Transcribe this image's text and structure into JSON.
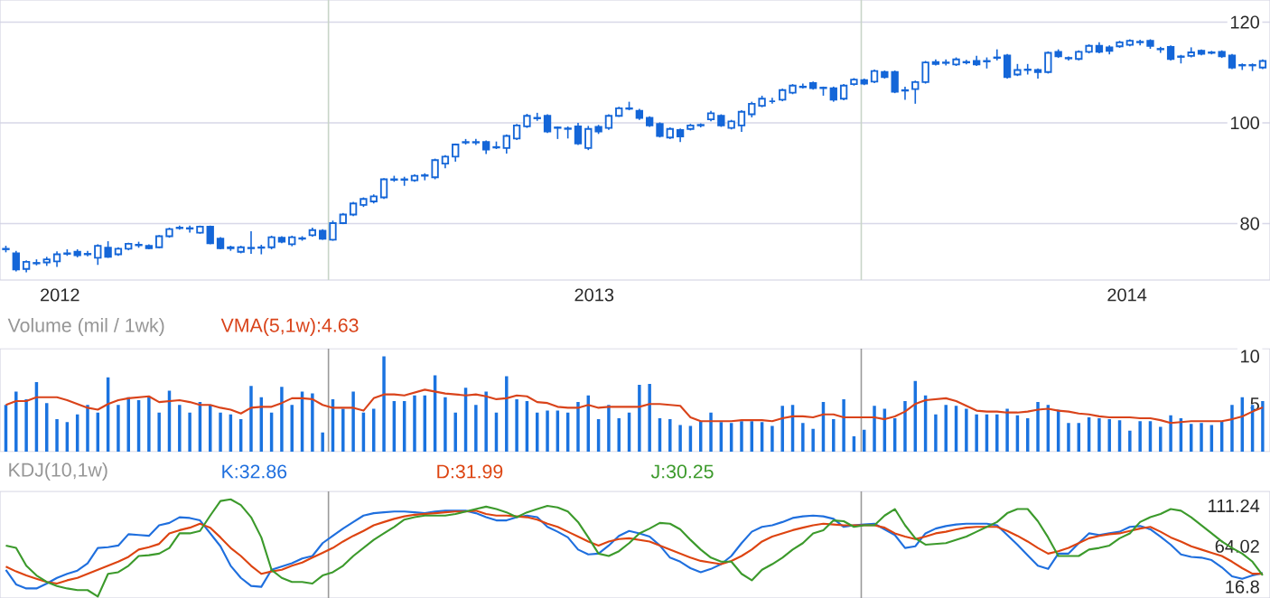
{
  "chart_data": [
    {
      "type": "candlestick",
      "color": "#1466d8",
      "x": [
        "2012-05-25",
        "2012-06-01",
        "2012-06-08",
        "2012-06-15",
        "2012-06-22",
        "2012-06-29",
        "2012-07-06",
        "2012-07-13",
        "2012-07-20",
        "2012-07-27",
        "2012-08-03",
        "2012-08-10",
        "2012-08-17",
        "2012-08-24",
        "2012-08-31",
        "2012-09-07",
        "2012-09-14",
        "2012-09-21",
        "2012-09-28",
        "2012-10-05",
        "2012-10-12",
        "2012-10-19",
        "2012-10-26",
        "2012-11-02",
        "2012-11-09",
        "2012-11-16",
        "2012-11-23",
        "2012-11-30",
        "2012-12-07",
        "2012-12-14",
        "2012-12-21",
        "2012-12-28",
        "2013-01-04",
        "2013-01-11",
        "2013-01-18",
        "2013-01-25",
        "2013-02-01",
        "2013-02-08",
        "2013-02-15",
        "2013-02-22",
        "2013-03-01",
        "2013-03-08",
        "2013-03-15",
        "2013-03-22",
        "2013-03-29",
        "2013-04-05",
        "2013-04-12",
        "2013-04-19",
        "2013-04-26",
        "2013-05-03",
        "2013-05-10",
        "2013-05-17",
        "2013-05-24",
        "2013-05-31",
        "2013-06-07",
        "2013-06-14",
        "2013-06-21",
        "2013-06-28",
        "2013-07-05",
        "2013-07-12",
        "2013-07-19",
        "2013-07-26",
        "2013-08-02",
        "2013-08-09",
        "2013-08-16",
        "2013-08-23",
        "2013-08-30",
        "2013-09-06",
        "2013-09-13",
        "2013-09-20",
        "2013-09-27",
        "2013-10-04",
        "2013-10-11",
        "2013-10-18",
        "2013-10-25",
        "2013-11-01",
        "2013-11-08",
        "2013-11-15",
        "2013-11-22",
        "2013-11-29",
        "2013-12-06",
        "2013-12-13",
        "2013-12-20",
        "2013-12-27",
        "2014-01-03",
        "2014-01-10",
        "2014-01-17",
        "2014-01-24",
        "2014-01-31",
        "2014-02-07",
        "2014-02-14",
        "2014-02-21",
        "2014-02-28",
        "2014-03-07",
        "2014-03-14",
        "2014-03-21",
        "2014-03-28",
        "2014-04-04",
        "2014-04-11",
        "2014-04-18",
        "2014-04-25",
        "2014-05-02",
        "2014-05-09",
        "2014-05-16",
        "2014-05-23",
        "2014-05-30",
        "2014-06-06",
        "2014-06-13",
        "2014-06-20",
        "2014-06-27",
        "2014-07-04",
        "2014-07-11",
        "2014-07-18",
        "2014-07-25",
        "2014-08-01",
        "2014-08-08",
        "2014-08-15",
        "2014-08-22",
        "2014-08-29",
        "2014-09-05",
        "2014-09-12",
        "2014-09-19",
        "2014-09-26",
        "2014-10-03"
      ],
      "ohlc": [
        [
          75.0,
          75.6,
          74.3,
          74.9
        ],
        [
          74.1,
          74.6,
          70.5,
          70.9
        ],
        [
          71.0,
          72.7,
          70.3,
          72.4
        ],
        [
          72.1,
          72.9,
          71.7,
          72.2
        ],
        [
          72.3,
          73.4,
          71.6,
          72.9
        ],
        [
          72.5,
          74.5,
          71.4,
          73.9
        ],
        [
          74.0,
          74.9,
          73.6,
          74.1
        ],
        [
          74.4,
          74.9,
          73.3,
          73.7
        ],
        [
          74.0,
          74.6,
          73.5,
          73.9
        ],
        [
          73.2,
          75.9,
          71.8,
          75.6
        ],
        [
          75.2,
          76.5,
          73.2,
          73.4
        ],
        [
          73.9,
          75.3,
          73.6,
          75.0
        ],
        [
          75.0,
          76.2,
          74.7,
          76.0
        ],
        [
          75.7,
          76.4,
          75.2,
          75.8
        ],
        [
          75.6,
          75.9,
          74.9,
          75.1
        ],
        [
          75.3,
          77.7,
          75.1,
          77.5
        ],
        [
          77.5,
          79.2,
          77.2,
          78.9
        ],
        [
          79.1,
          79.6,
          78.8,
          79.2
        ],
        [
          79.1,
          79.6,
          78.2,
          79.0
        ],
        [
          78.2,
          79.6,
          78.0,
          79.4
        ],
        [
          79.4,
          79.6,
          75.9,
          76.1
        ],
        [
          77.0,
          77.3,
          74.9,
          75.1
        ],
        [
          75.3,
          75.6,
          74.6,
          75.1
        ],
        [
          74.4,
          75.6,
          74.1,
          75.3
        ],
        [
          75.1,
          78.5,
          74.0,
          75.2
        ],
        [
          75.2,
          75.8,
          73.9,
          75.3
        ],
        [
          75.3,
          77.6,
          74.9,
          77.3
        ],
        [
          77.2,
          77.5,
          76.1,
          76.4
        ],
        [
          75.9,
          77.6,
          75.5,
          77.3
        ],
        [
          77.0,
          77.5,
          76.6,
          77.1
        ],
        [
          77.7,
          79.2,
          77.4,
          78.7
        ],
        [
          78.6,
          78.9,
          76.8,
          77.0
        ],
        [
          76.8,
          80.6,
          76.6,
          80.1
        ],
        [
          80.1,
          82.1,
          79.9,
          81.8
        ],
        [
          81.8,
          84.3,
          81.5,
          84.0
        ],
        [
          83.7,
          85.2,
          83.3,
          84.9
        ],
        [
          84.4,
          85.8,
          84.0,
          85.4
        ],
        [
          85.2,
          89.0,
          84.9,
          88.8
        ],
        [
          88.7,
          89.5,
          88.3,
          88.8
        ],
        [
          88.7,
          89.3,
          87.5,
          88.8
        ],
        [
          88.6,
          89.8,
          88.3,
          89.5
        ],
        [
          89.5,
          90.0,
          88.6,
          89.6
        ],
        [
          89.2,
          92.9,
          88.8,
          92.6
        ],
        [
          91.9,
          93.6,
          91.0,
          93.3
        ],
        [
          93.3,
          95.9,
          92.3,
          95.7
        ],
        [
          96.1,
          96.8,
          95.7,
          96.2
        ],
        [
          96.1,
          96.8,
          95.6,
          96.2
        ],
        [
          96.2,
          96.5,
          93.8,
          94.7
        ],
        [
          95.1,
          96.3,
          94.8,
          95.2
        ],
        [
          95.0,
          97.7,
          93.9,
          97.4
        ],
        [
          96.9,
          99.8,
          96.6,
          99.5
        ],
        [
          99.3,
          101.8,
          99.0,
          101.4
        ],
        [
          100.9,
          102.0,
          100.4,
          101.0
        ],
        [
          101.4,
          101.7,
          98.0,
          98.3
        ],
        [
          99.0,
          99.3,
          96.8,
          99.1
        ],
        [
          98.8,
          99.3,
          96.9,
          98.9
        ],
        [
          99.3,
          100.0,
          95.6,
          95.9
        ],
        [
          95.0,
          99.4,
          94.6,
          98.8
        ],
        [
          99.2,
          99.6,
          97.8,
          98.3
        ],
        [
          99.0,
          101.7,
          98.6,
          101.4
        ],
        [
          101.4,
          103.2,
          101.2,
          102.9
        ],
        [
          102.8,
          104.2,
          102.5,
          102.9
        ],
        [
          102.4,
          102.8,
          100.6,
          101.0
        ],
        [
          101.0,
          101.3,
          99.2,
          99.5
        ],
        [
          99.8,
          100.1,
          97.1,
          97.4
        ],
        [
          97.1,
          99.1,
          96.8,
          98.8
        ],
        [
          98.6,
          98.9,
          96.2,
          97.3
        ],
        [
          98.8,
          99.8,
          98.5,
          99.5
        ],
        [
          99.5,
          99.9,
          99.1,
          99.6
        ],
        [
          100.7,
          102.4,
          100.3,
          101.9
        ],
        [
          101.4,
          101.7,
          99.2,
          99.5
        ],
        [
          99.0,
          100.6,
          98.7,
          100.3
        ],
        [
          99.5,
          102.5,
          98.2,
          102.2
        ],
        [
          101.7,
          104.2,
          101.1,
          103.8
        ],
        [
          103.4,
          105.4,
          103.1,
          104.8
        ],
        [
          104.3,
          105.0,
          103.8,
          104.3
        ],
        [
          104.6,
          106.8,
          104.3,
          106.5
        ],
        [
          106.0,
          107.7,
          105.7,
          107.4
        ],
        [
          107.1,
          107.8,
          106.8,
          107.2
        ],
        [
          107.9,
          108.2,
          106.6,
          106.9
        ],
        [
          106.9,
          107.2,
          105.4,
          107.0
        ],
        [
          106.9,
          107.2,
          104.2,
          104.6
        ],
        [
          104.8,
          107.7,
          104.5,
          107.4
        ],
        [
          107.7,
          108.9,
          107.4,
          108.6
        ],
        [
          108.5,
          108.8,
          107.5,
          107.8
        ],
        [
          108.2,
          110.6,
          107.9,
          110.3
        ],
        [
          110.1,
          110.4,
          108.8,
          109.1
        ],
        [
          110.1,
          110.4,
          105.9,
          106.2
        ],
        [
          106.5,
          107.2,
          104.6,
          106.4
        ],
        [
          106.7,
          108.4,
          103.8,
          108.1
        ],
        [
          108.1,
          112.3,
          107.8,
          112.0
        ],
        [
          112.1,
          112.6,
          111.4,
          111.7
        ],
        [
          111.9,
          112.6,
          111.4,
          112.0
        ],
        [
          111.6,
          113.0,
          111.3,
          112.6
        ],
        [
          112.0,
          112.5,
          111.6,
          112.1
        ],
        [
          112.3,
          113.3,
          111.3,
          111.6
        ],
        [
          112.2,
          113.0,
          110.8,
          112.3
        ],
        [
          112.9,
          114.6,
          112.4,
          113.0
        ],
        [
          113.4,
          113.7,
          108.8,
          109.1
        ],
        [
          109.6,
          111.7,
          109.3,
          110.5
        ],
        [
          110.5,
          111.7,
          109.6,
          110.6
        ],
        [
          110.5,
          110.8,
          108.8,
          110.1
        ],
        [
          110.1,
          114.2,
          109.8,
          113.9
        ],
        [
          114.1,
          114.6,
          112.9,
          113.2
        ],
        [
          112.8,
          113.2,
          112.4,
          112.9
        ],
        [
          112.7,
          114.4,
          112.4,
          114.1
        ],
        [
          114.1,
          115.6,
          113.8,
          115.3
        ],
        [
          115.3,
          116.0,
          113.8,
          114.1
        ],
        [
          115.0,
          115.4,
          113.6,
          114.3
        ],
        [
          115.2,
          116.3,
          114.9,
          116.0
        ],
        [
          115.5,
          116.6,
          115.2,
          116.3
        ],
        [
          116.0,
          116.5,
          115.4,
          116.1
        ],
        [
          116.3,
          116.6,
          114.7,
          115.3
        ],
        [
          114.6,
          115.1,
          113.9,
          114.7
        ],
        [
          115.1,
          115.4,
          112.4,
          112.7
        ],
        [
          113.1,
          113.5,
          111.8,
          113.2
        ],
        [
          113.3,
          115.0,
          113.0,
          114.0
        ],
        [
          114.3,
          114.6,
          113.4,
          113.7
        ],
        [
          113.9,
          114.3,
          113.6,
          114.0
        ],
        [
          114.1,
          114.4,
          112.9,
          113.2
        ],
        [
          113.4,
          113.7,
          110.7,
          111.0
        ],
        [
          111.4,
          111.8,
          110.5,
          111.5
        ],
        [
          111.4,
          111.8,
          110.3,
          111.5
        ],
        [
          111.0,
          112.6,
          110.7,
          112.3
        ]
      ],
      "xlim": [
        "2012-05-21",
        "2014-10-08"
      ],
      "xticks": [
        {
          "value": "2012-07-01",
          "label": "2012"
        },
        {
          "value": "2013-07-02",
          "label": "2013"
        },
        {
          "value": "2014-07-02",
          "label": "2014"
        }
      ],
      "ylim": [
        68.8,
        124.4
      ],
      "yticks": [
        80,
        100,
        120
      ],
      "grid": "y",
      "ref_lines": [
        {
          "axis": "x",
          "value": "2013-01-01",
          "color": "#c8d4c8"
        },
        {
          "axis": "x",
          "value": "2014-01-01",
          "color": "#c8d4c8"
        }
      ]
    },
    {
      "type": "bar",
      "title": "Volume (mil / 1wk)",
      "x": [
        "2012-05-25",
        "2012-06-01",
        "2012-06-08",
        "2012-06-15",
        "2012-06-22",
        "2012-06-29",
        "2012-07-06",
        "2012-07-13",
        "2012-07-20",
        "2012-07-27",
        "2012-08-03",
        "2012-08-10",
        "2012-08-17",
        "2012-08-24",
        "2012-08-31",
        "2012-09-07",
        "2012-09-14",
        "2012-09-21",
        "2012-09-28",
        "2012-10-05",
        "2012-10-12",
        "2012-10-19",
        "2012-10-26",
        "2012-11-02",
        "2012-11-09",
        "2012-11-16",
        "2012-11-23",
        "2012-11-30",
        "2012-12-07",
        "2012-12-14",
        "2012-12-21",
        "2012-12-28",
        "2013-01-04",
        "2013-01-11",
        "2013-01-18",
        "2013-01-25",
        "2013-02-01",
        "2013-02-08",
        "2013-02-15",
        "2013-02-22",
        "2013-03-01",
        "2013-03-08",
        "2013-03-15",
        "2013-03-22",
        "2013-03-29",
        "2013-04-05",
        "2013-04-12",
        "2013-04-19",
        "2013-04-26",
        "2013-05-03",
        "2013-05-10",
        "2013-05-17",
        "2013-05-24",
        "2013-05-31",
        "2013-06-07",
        "2013-06-14",
        "2013-06-21",
        "2013-06-28",
        "2013-07-05",
        "2013-07-12",
        "2013-07-19",
        "2013-07-26",
        "2013-08-02",
        "2013-08-09",
        "2013-08-16",
        "2013-08-23",
        "2013-08-30",
        "2013-09-06",
        "2013-09-13",
        "2013-09-20",
        "2013-09-27",
        "2013-10-04",
        "2013-10-11",
        "2013-10-18",
        "2013-10-25",
        "2013-11-01",
        "2013-11-08",
        "2013-11-15",
        "2013-11-22",
        "2013-11-29",
        "2013-12-06",
        "2013-12-13",
        "2013-12-20",
        "2013-12-27",
        "2014-01-03",
        "2014-01-10",
        "2014-01-17",
        "2014-01-24",
        "2014-01-31",
        "2014-02-07",
        "2014-02-14",
        "2014-02-21",
        "2014-02-28",
        "2014-03-07",
        "2014-03-14",
        "2014-03-21",
        "2014-03-28",
        "2014-04-04",
        "2014-04-11",
        "2014-04-18",
        "2014-04-25",
        "2014-05-02",
        "2014-05-09",
        "2014-05-16",
        "2014-05-23",
        "2014-05-30",
        "2014-06-06",
        "2014-06-13",
        "2014-06-20",
        "2014-06-27",
        "2014-07-04",
        "2014-07-11",
        "2014-07-18",
        "2014-07-25",
        "2014-08-01",
        "2014-08-08",
        "2014-08-15",
        "2014-08-22",
        "2014-08-29",
        "2014-09-05",
        "2014-09-12",
        "2014-09-19",
        "2014-09-26",
        "2014-10-03"
      ],
      "series": [
        {
          "type": "bar",
          "color": "#1a73e0",
          "values": [
            4.9,
            6.3,
            5.5,
            7.3,
            5.1,
            3.4,
            3.1,
            3.9,
            4.9,
            4.1,
            7.8,
            4.9,
            5.7,
            5.4,
            5.7,
            4.1,
            6.4,
            4.9,
            4.1,
            5.2,
            4.9,
            4.1,
            3.9,
            3.4,
            6.9,
            5.7,
            4.1,
            6.8,
            4.9,
            6.3,
            6.1,
            2.0,
            5.5,
            4.5,
            6.3,
            4.1,
            4.5,
            10.0,
            5.3,
            5.3,
            5.9,
            5.9,
            8.0,
            5.7,
            4.1,
            6.7,
            4.9,
            6.3,
            4.1,
            7.9,
            5.5,
            5.3,
            4.1,
            4.3,
            4.3,
            4.1,
            5.2,
            5.9,
            3.4,
            4.9,
            3.5,
            4.1,
            7.0,
            7.1,
            3.5,
            3.4,
            2.8,
            2.7,
            3.2,
            4.1,
            3.1,
            3.0,
            3.2,
            3.2,
            3.1,
            2.7,
            4.8,
            4.9,
            3.0,
            2.4,
            5.2,
            3.4,
            5.5,
            1.6,
            2.3,
            4.8,
            4.5,
            3.5,
            5.3,
            7.4,
            5.9,
            3.9,
            4.9,
            4.8,
            4.5,
            3.9,
            3.9,
            3.9,
            4.5,
            3.8,
            3.5,
            5.2,
            4.9,
            4.4,
            3.0,
            3.0,
            3.6,
            3.5,
            3.4,
            3.3,
            2.2,
            3.2,
            3.2,
            2.6,
            3.8,
            3.5,
            2.9,
            3.0,
            2.8,
            3.2,
            4.9,
            5.7,
            4.9,
            5.3
          ]
        },
        {
          "type": "line",
          "name": "VMA(5,1w):4.63",
          "color": "#d9431a",
          "values": [
            4.9,
            5.3,
            5.3,
            5.7,
            5.7,
            5.7,
            5.4,
            5.0,
            4.6,
            4.4,
            5.0,
            5.4,
            5.6,
            5.7,
            5.8,
            5.2,
            5.3,
            5.4,
            5.2,
            4.9,
            4.9,
            4.6,
            4.4,
            4.0,
            4.6,
            4.7,
            4.7,
            5.1,
            5.6,
            5.6,
            5.5,
            4.9,
            4.6,
            4.6,
            4.6,
            4.3,
            5.6,
            6.0,
            6.0,
            5.9,
            6.2,
            6.5,
            6.3,
            6.1,
            6.0,
            5.9,
            6.0,
            5.8,
            5.5,
            5.6,
            5.9,
            5.8,
            5.2,
            5.1,
            4.7,
            4.6,
            4.6,
            4.9,
            4.6,
            4.7,
            4.7,
            4.7,
            4.7,
            5.0,
            5.0,
            4.9,
            4.8,
            3.6,
            3.2,
            3.2,
            3.2,
            3.2,
            3.3,
            3.3,
            3.3,
            3.2,
            3.5,
            3.7,
            3.7,
            3.6,
            3.9,
            3.9,
            3.6,
            3.6,
            3.6,
            3.6,
            3.4,
            3.7,
            4.2,
            5.0,
            5.4,
            5.5,
            5.6,
            5.3,
            4.8,
            4.3,
            4.2,
            4.2,
            4.1,
            4.1,
            4.2,
            4.4,
            4.5,
            4.3,
            4.2,
            4.0,
            3.9,
            3.7,
            3.6,
            3.6,
            3.6,
            3.5,
            3.5,
            3.3,
            3.0,
            3.1,
            3.2,
            3.2,
            3.2,
            3.2,
            3.4,
            3.7,
            4.2,
            4.63
          ]
        }
      ],
      "xlim": [
        "2012-05-21",
        "2014-10-08"
      ],
      "ylim": [
        0,
        10.8
      ],
      "yticks": [
        5,
        10
      ],
      "tick_labels": "y",
      "ref_lines": [
        {
          "axis": "x",
          "value": "2013-01-01",
          "color": "#9a9a9a"
        },
        {
          "axis": "x",
          "value": "2014-01-01",
          "color": "#9a9a9a"
        }
      ]
    },
    {
      "type": "line",
      "title": "KDJ(10,1w)",
      "x": [
        "2012-05-25",
        "2012-06-01",
        "2012-06-08",
        "2012-06-15",
        "2012-06-22",
        "2012-06-29",
        "2012-07-06",
        "2012-07-13",
        "2012-07-20",
        "2012-07-27",
        "2012-08-03",
        "2012-08-10",
        "2012-08-17",
        "2012-08-24",
        "2012-08-31",
        "2012-09-07",
        "2012-09-14",
        "2012-09-21",
        "2012-09-28",
        "2012-10-05",
        "2012-10-12",
        "2012-10-19",
        "2012-10-26",
        "2012-11-02",
        "2012-11-09",
        "2012-11-16",
        "2012-11-23",
        "2012-11-30",
        "2012-12-07",
        "2012-12-14",
        "2012-12-21",
        "2012-12-28",
        "2013-01-04",
        "2013-01-11",
        "2013-01-18",
        "2013-01-25",
        "2013-02-01",
        "2013-02-08",
        "2013-02-15",
        "2013-02-22",
        "2013-03-01",
        "2013-03-08",
        "2013-03-15",
        "2013-03-22",
        "2013-03-29",
        "2013-04-05",
        "2013-04-12",
        "2013-04-19",
        "2013-04-26",
        "2013-05-03",
        "2013-05-10",
        "2013-05-17",
        "2013-05-24",
        "2013-05-31",
        "2013-06-07",
        "2013-06-14",
        "2013-06-21",
        "2013-06-28",
        "2013-07-05",
        "2013-07-12",
        "2013-07-19",
        "2013-07-26",
        "2013-08-02",
        "2013-08-09",
        "2013-08-16",
        "2013-08-23",
        "2013-08-30",
        "2013-09-06",
        "2013-09-13",
        "2013-09-20",
        "2013-09-27",
        "2013-10-04",
        "2013-10-11",
        "2013-10-18",
        "2013-10-25",
        "2013-11-01",
        "2013-11-08",
        "2013-11-15",
        "2013-11-22",
        "2013-11-29",
        "2013-12-06",
        "2013-12-13",
        "2013-12-20",
        "2013-12-27",
        "2014-01-03",
        "2014-01-10",
        "2014-01-17",
        "2014-01-24",
        "2014-01-31",
        "2014-02-07",
        "2014-02-14",
        "2014-02-21",
        "2014-02-28",
        "2014-03-07",
        "2014-03-14",
        "2014-03-21",
        "2014-03-28",
        "2014-04-04",
        "2014-04-11",
        "2014-04-18",
        "2014-04-25",
        "2014-05-02",
        "2014-05-09",
        "2014-05-16",
        "2014-05-23",
        "2014-05-30",
        "2014-06-06",
        "2014-06-13",
        "2014-06-20",
        "2014-06-27",
        "2014-07-04",
        "2014-07-11",
        "2014-07-18",
        "2014-07-25",
        "2014-08-01",
        "2014-08-08",
        "2014-08-15",
        "2014-08-22",
        "2014-08-29",
        "2014-09-05",
        "2014-09-12",
        "2014-09-19",
        "2014-09-26",
        "2014-10-03"
      ],
      "series": [
        {
          "name": "K:32.86",
          "color": "#1f6fde",
          "values": [
            36.6,
            19.6,
            14.9,
            14.9,
            20.6,
            27.2,
            31.9,
            35.7,
            44.2,
            62.1,
            63.0,
            64.9,
            78.1,
            77.2,
            76.2,
            88.5,
            91.3,
            97.9,
            97.0,
            94.2,
            79.1,
            64.0,
            41.3,
            27.2,
            17.8,
            16.8,
            36.6,
            40.4,
            44.2,
            49.8,
            52.7,
            67.7,
            76.2,
            84.7,
            92.3,
            99.8,
            102.6,
            103.6,
            104.5,
            104.5,
            103.6,
            102.6,
            104.5,
            105.5,
            105.5,
            105.5,
            102.6,
            97.9,
            94.2,
            94.2,
            97.9,
            99.8,
            97.9,
            86.6,
            81.0,
            74.4,
            60.2,
            54.5,
            55.5,
            64.9,
            76.2,
            81.9,
            79.1,
            75.3,
            64.9,
            50.8,
            46.1,
            38.5,
            33.8,
            37.6,
            43.2,
            52.7,
            67.7,
            81.0,
            86.6,
            88.5,
            92.3,
            97.0,
            98.9,
            99.8,
            98.9,
            96.0,
            86.6,
            88.5,
            89.4,
            90.4,
            83.8,
            77.2,
            62.1,
            64.0,
            79.1,
            84.7,
            87.6,
            89.4,
            90.4,
            90.4,
            90.4,
            88.5,
            77.2,
            65.9,
            53.6,
            41.3,
            37.6,
            55.5,
            55.5,
            67.7,
            79.1,
            77.2,
            79.1,
            81.0,
            86.6,
            87.6,
            83.8,
            75.3,
            65.9,
            54.5,
            51.7,
            50.8,
            47.9,
            39.5,
            29.1,
            26.2,
            30.0,
            32.86
          ]
        },
        {
          "name": "D:31.99",
          "color": "#dd4411",
          "values": [
            40.4,
            34.7,
            30.0,
            26.2,
            22.5,
            20.6,
            24.4,
            27.2,
            31.9,
            36.6,
            41.3,
            46.1,
            51.7,
            60.2,
            63.0,
            66.8,
            79.1,
            82.8,
            85.7,
            90.4,
            85.7,
            74.4,
            62.1,
            52.7,
            41.3,
            31.9,
            34.7,
            36.6,
            41.3,
            45.1,
            50.8,
            56.4,
            62.1,
            69.6,
            76.2,
            81.9,
            88.5,
            92.3,
            96.0,
            98.9,
            100.8,
            101.7,
            102.6,
            103.6,
            104.5,
            104.5,
            105.5,
            101.7,
            99.8,
            99.8,
            98.9,
            97.9,
            95.1,
            90.4,
            86.6,
            81.0,
            75.3,
            69.6,
            64.9,
            69.6,
            72.5,
            73.4,
            71.5,
            69.6,
            64.9,
            60.2,
            55.5,
            50.8,
            47.0,
            45.1,
            43.2,
            47.0,
            52.7,
            60.2,
            69.6,
            75.3,
            79.1,
            82.8,
            85.7,
            88.5,
            90.4,
            89.4,
            88.5,
            88.5,
            88.5,
            88.5,
            85.7,
            79.1,
            75.3,
            72.5,
            75.3,
            79.1,
            81.0,
            83.8,
            85.7,
            86.6,
            86.6,
            86.6,
            81.9,
            76.2,
            69.6,
            62.1,
            55.5,
            58.3,
            62.1,
            67.7,
            73.4,
            76.2,
            78.1,
            79.1,
            81.9,
            84.7,
            86.6,
            81.0,
            74.4,
            69.6,
            64.0,
            60.2,
            56.4,
            52.7,
            46.1,
            38.5,
            32.0,
            31.99
          ]
        },
        {
          "name": "J:30.25",
          "color": "#3c9a2c",
          "values": [
            64.9,
            62.1,
            41.3,
            30.0,
            22.5,
            17.8,
            14.9,
            13.0,
            13.0,
            5.5,
            31.9,
            33.8,
            41.3,
            52.7,
            53.6,
            55.5,
            62.1,
            79.1,
            79.1,
            81.9,
            99.8,
            116.8,
            118.7,
            112.1,
            97.9,
            74.4,
            36.6,
            27.2,
            22.5,
            22.5,
            20.6,
            30.0,
            33.8,
            41.3,
            52.7,
            62.1,
            71.5,
            79.1,
            86.6,
            95.1,
            97.9,
            99.8,
            99.8,
            99.8,
            101.7,
            104.5,
            107.4,
            110.2,
            107.4,
            103.6,
            97.9,
            103.6,
            107.4,
            111.1,
            109.3,
            104.5,
            92.3,
            74.4,
            55.5,
            52.7,
            58.3,
            67.7,
            79.1,
            84.7,
            91.3,
            90.4,
            83.8,
            71.5,
            60.2,
            50.8,
            46.1,
            46.1,
            31.9,
            24.4,
            36.6,
            43.2,
            50.8,
            60.2,
            67.7,
            79.1,
            82.8,
            94.2,
            93.2,
            86.6,
            88.5,
            88.5,
            99.8,
            107.4,
            88.5,
            73.4,
            65.9,
            66.8,
            67.7,
            71.5,
            75.3,
            81.0,
            86.6,
            92.3,
            102.6,
            107.4,
            107.4,
            93.2,
            74.4,
            52.7,
            52.7,
            52.7,
            60.2,
            62.1,
            64.9,
            73.4,
            79.1,
            92.3,
            97.9,
            101.7,
            107.4,
            105.5,
            97.9,
            88.5,
            79.1,
            69.6,
            62.1,
            55.5,
            46.1,
            30.25
          ]
        }
      ],
      "xlim": [
        "2012-05-21",
        "2014-10-08"
      ],
      "ylim": [
        3.8,
        128.0
      ],
      "yticks": [
        16.8,
        64.02,
        111.24
      ],
      "tick_labels": "y",
      "ref_lines": [
        {
          "axis": "x",
          "value": "2013-01-01",
          "color": "#9a9a9a"
        },
        {
          "axis": "x",
          "value": "2014-01-01",
          "color": "#9a9a9a"
        }
      ]
    }
  ]
}
